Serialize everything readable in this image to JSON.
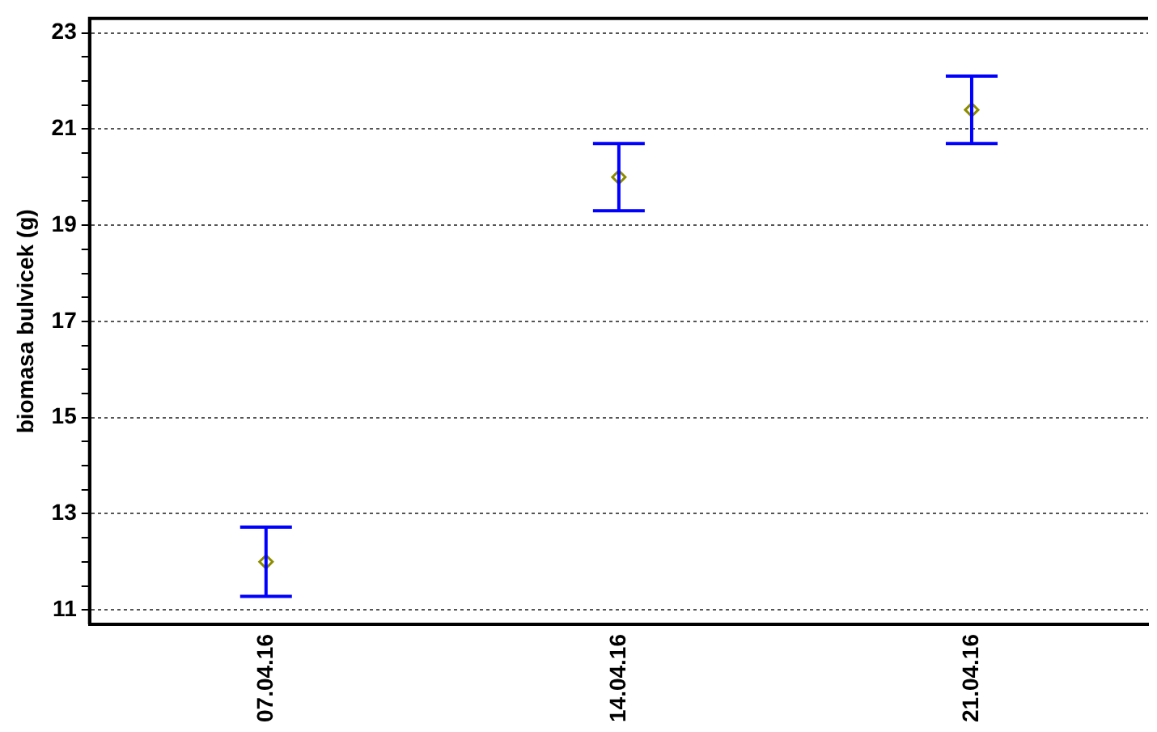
{
  "chart_data": {
    "type": "scatter",
    "ylabel": "biomasa bulvicek (g)",
    "categories": [
      "07.04.16",
      "14.04.16",
      "21.04.16"
    ],
    "series": [
      {
        "color": "#8c8c00",
        "values": [
          12.0,
          20.0,
          21.4
        ],
        "errors": [
          0.72,
          0.7,
          0.7
        ]
      }
    ],
    "marker": "diamond",
    "ylim": [
      10.7,
      23.3
    ],
    "yticks": [
      11,
      {
        "value": 11.5,
        "label": null
      },
      {
        "value": 12,
        "label": null
      },
      {
        "value": 12.5,
        "label": null
      },
      13,
      {
        "value": 13.5,
        "label": null
      },
      {
        "value": 14,
        "label": null
      },
      {
        "value": 14.5,
        "label": null
      },
      15,
      {
        "value": 15.5,
        "label": null
      },
      {
        "value": 16,
        "label": null
      },
      {
        "value": 16.5,
        "label": null
      },
      17,
      {
        "value": 17.5,
        "label": null
      },
      {
        "value": 18,
        "label": null
      },
      {
        "value": 18.5,
        "label": null
      },
      19,
      {
        "value": 19.5,
        "label": null
      },
      {
        "value": 20,
        "label": null
      },
      {
        "value": 20.5,
        "label": null
      },
      21,
      {
        "value": 21.5,
        "label": null
      },
      {
        "value": 22,
        "label": null
      },
      {
        "value": 22.5,
        "label": null
      },
      23
    ],
    "grid": "y"
  }
}
